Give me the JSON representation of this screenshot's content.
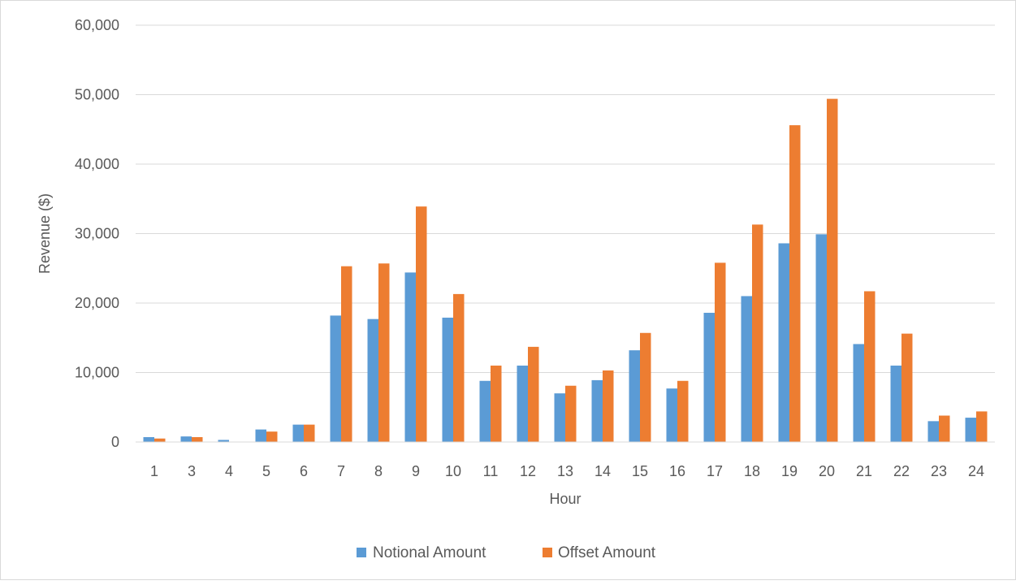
{
  "chart_data": {
    "type": "bar",
    "title": "",
    "xlabel": "Hour",
    "ylabel": "Revenue ($)",
    "ylim": [
      0,
      60000
    ],
    "yticks": [
      0,
      10000,
      20000,
      30000,
      40000,
      50000,
      60000
    ],
    "ytick_labels": [
      "0",
      "10,000",
      "20,000",
      "30,000",
      "40,000",
      "50,000",
      "60,000"
    ],
    "grid": true,
    "legend_position": "bottom",
    "categories": [
      "1",
      "3",
      "4",
      "5",
      "6",
      "7",
      "8",
      "9",
      "10",
      "11",
      "12",
      "13",
      "14",
      "15",
      "16",
      "17",
      "18",
      "19",
      "20",
      "21",
      "22",
      "23",
      "24"
    ],
    "series": [
      {
        "name": "Notional Amount",
        "color": "#5b9bd5",
        "values": [
          700,
          800,
          300,
          1800,
          2500,
          18200,
          17700,
          24400,
          17900,
          8800,
          11000,
          7000,
          8900,
          13200,
          7700,
          18600,
          21000,
          28600,
          29900,
          14100,
          11000,
          3000,
          3500
        ]
      },
      {
        "name": "Offset Amount",
        "color": "#ed7d31",
        "values": [
          500,
          700,
          0,
          1500,
          2500,
          25300,
          25700,
          33900,
          21300,
          11000,
          13700,
          8100,
          10300,
          15700,
          8800,
          25800,
          31300,
          45600,
          49400,
          21700,
          15600,
          3800,
          4400
        ]
      }
    ]
  }
}
